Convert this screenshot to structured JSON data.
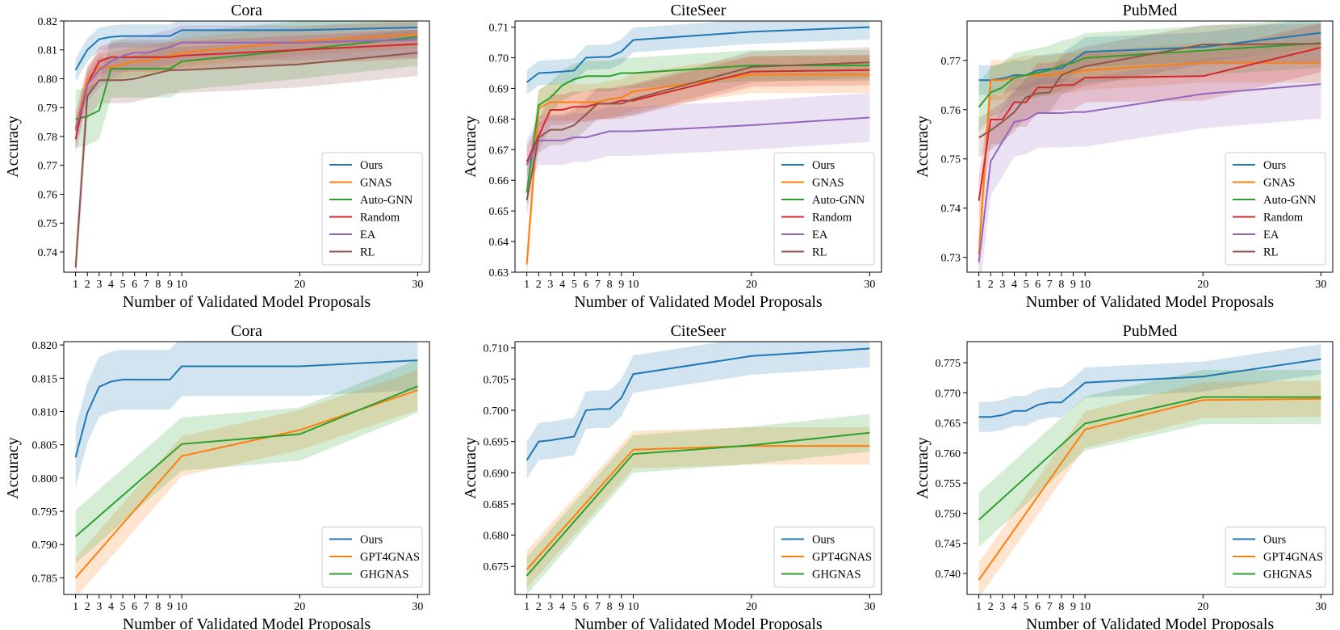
{
  "chart_data": [
    {
      "type": "line",
      "title": "Cora",
      "xlabel": "Number of Validated Model Proposals",
      "ylabel": "Accuracy",
      "xlim": [
        0,
        31
      ],
      "ylim": [
        0.733,
        0.82
      ],
      "xticks": [
        1,
        2,
        3,
        4,
        5,
        6,
        7,
        8,
        9,
        10,
        20,
        30
      ],
      "yticks": [
        0.74,
        0.75,
        0.76,
        0.77,
        0.78,
        0.79,
        0.8,
        0.81,
        0.82
      ],
      "ytick_decimals": 2,
      "legend_position": "lower right",
      "x": [
        1,
        2,
        3,
        4,
        5,
        6,
        7,
        8,
        9,
        10,
        20,
        30
      ],
      "series": [
        {
          "name": "Ours",
          "color": "#1f77b4",
          "values": [
            0.803,
            0.81,
            0.8137,
            0.8145,
            0.8148,
            0.8148,
            0.8148,
            0.8148,
            0.8148,
            0.8168,
            0.8168,
            0.8178
          ],
          "band": 0.004
        },
        {
          "name": "GNAS",
          "color": "#ff7f0e",
          "values": [
            0.783,
            0.8,
            0.804,
            0.804,
            0.805,
            0.806,
            0.806,
            0.807,
            0.808,
            0.809,
            0.813,
            0.8155
          ],
          "band": 0.005
        },
        {
          "name": "Auto-GNN",
          "color": "#2ca02c",
          "values": [
            0.786,
            0.787,
            0.789,
            0.8035,
            0.8035,
            0.8035,
            0.8035,
            0.8035,
            0.8035,
            0.806,
            0.81,
            0.8145
          ],
          "band": 0.01
        },
        {
          "name": "Random",
          "color": "#d62728",
          "values": [
            0.779,
            0.798,
            0.806,
            0.8075,
            0.8075,
            0.8075,
            0.8075,
            0.8075,
            0.8075,
            0.808,
            0.81,
            0.812
          ],
          "band": 0.005
        },
        {
          "name": "EA",
          "color": "#9467bd",
          "values": [
            0.782,
            0.798,
            0.803,
            0.806,
            0.808,
            0.809,
            0.809,
            0.81,
            0.811,
            0.8125,
            0.8125,
            0.8135
          ],
          "band": 0.006
        },
        {
          "name": "RL",
          "color": "#8c564b",
          "values": [
            0.7345,
            0.794,
            0.7995,
            0.7995,
            0.7995,
            0.8,
            0.801,
            0.802,
            0.803,
            0.803,
            0.805,
            0.809
          ],
          "band": 0.008
        }
      ]
    },
    {
      "type": "line",
      "title": "CiteSeer",
      "xlabel": "Number of Validated Model Proposals",
      "ylabel": "Accuracy",
      "xlim": [
        0,
        31
      ],
      "ylim": [
        0.63,
        0.712
      ],
      "xticks": [
        1,
        2,
        3,
        4,
        5,
        6,
        7,
        8,
        9,
        10,
        20,
        30
      ],
      "yticks": [
        0.63,
        0.64,
        0.65,
        0.66,
        0.67,
        0.68,
        0.69,
        0.7,
        0.71
      ],
      "ytick_decimals": 2,
      "legend_position": "lower right",
      "x": [
        1,
        2,
        3,
        4,
        5,
        6,
        7,
        8,
        9,
        10,
        20,
        30
      ],
      "series": [
        {
          "name": "Ours",
          "color": "#1f77b4",
          "values": [
            0.692,
            0.695,
            0.6952,
            0.6955,
            0.6958,
            0.7,
            0.7002,
            0.7003,
            0.702,
            0.7058,
            0.7085,
            0.71
          ],
          "band": 0.004
        },
        {
          "name": "GNAS",
          "color": "#ff7f0e",
          "values": [
            0.6325,
            0.6835,
            0.6855,
            0.6855,
            0.6855,
            0.6855,
            0.6855,
            0.6865,
            0.687,
            0.689,
            0.6945,
            0.6945
          ],
          "band": 0.006
        },
        {
          "name": "Auto-GNN",
          "color": "#2ca02c",
          "values": [
            0.656,
            0.6845,
            0.687,
            0.691,
            0.693,
            0.694,
            0.694,
            0.694,
            0.695,
            0.695,
            0.6975,
            0.6975
          ],
          "band": 0.005
        },
        {
          "name": "Random",
          "color": "#d62728",
          "values": [
            0.666,
            0.6745,
            0.683,
            0.683,
            0.684,
            0.684,
            0.685,
            0.685,
            0.686,
            0.686,
            0.6955,
            0.696
          ],
          "band": 0.005
        },
        {
          "name": "EA",
          "color": "#9467bd",
          "values": [
            0.665,
            0.673,
            0.673,
            0.673,
            0.674,
            0.674,
            0.675,
            0.676,
            0.676,
            0.676,
            0.678,
            0.6805
          ],
          "band": 0.008
        },
        {
          "name": "RL",
          "color": "#8c564b",
          "values": [
            0.6535,
            0.674,
            0.6765,
            0.6765,
            0.678,
            0.6815,
            0.685,
            0.685,
            0.685,
            0.6865,
            0.697,
            0.6985
          ],
          "band": 0.005
        }
      ]
    },
    {
      "type": "line",
      "title": "PubMed",
      "xlabel": "Number of Validated Model Proposals",
      "ylabel": "Accuracy",
      "xlim": [
        0,
        31
      ],
      "ylim": [
        0.727,
        0.778
      ],
      "xticks": [
        1,
        2,
        3,
        4,
        5,
        6,
        7,
        8,
        9,
        10,
        20,
        30
      ],
      "yticks": [
        0.73,
        0.74,
        0.75,
        0.76,
        0.77
      ],
      "ytick_decimals": 2,
      "legend_position": "lower right",
      "x": [
        1,
        2,
        3,
        4,
        5,
        6,
        7,
        8,
        9,
        10,
        20,
        30
      ],
      "series": [
        {
          "name": "Ours",
          "color": "#1f77b4",
          "values": [
            0.766,
            0.766,
            0.7663,
            0.767,
            0.767,
            0.768,
            0.7683,
            0.7684,
            0.77,
            0.7717,
            0.7727,
            0.7756
          ],
          "band": 0.003
        },
        {
          "name": "GNAS",
          "color": "#ff7f0e",
          "values": [
            0.7305,
            0.766,
            0.766,
            0.7665,
            0.767,
            0.767,
            0.767,
            0.7675,
            0.7675,
            0.768,
            0.7695,
            0.7695
          ],
          "band": 0.004
        },
        {
          "name": "Auto-GNN",
          "color": "#2ca02c",
          "values": [
            0.7605,
            0.7635,
            0.7645,
            0.7665,
            0.767,
            0.7675,
            0.768,
            0.769,
            0.7695,
            0.7705,
            0.772,
            0.7735
          ],
          "band": 0.005
        },
        {
          "name": "Random",
          "color": "#d62728",
          "values": [
            0.7415,
            0.758,
            0.758,
            0.7615,
            0.7615,
            0.7645,
            0.7645,
            0.765,
            0.765,
            0.7665,
            0.7668,
            0.7726
          ],
          "band": 0.005
        },
        {
          "name": "EA",
          "color": "#9467bd",
          "values": [
            0.729,
            0.7495,
            0.7535,
            0.7575,
            0.758,
            0.7593,
            0.7593,
            0.7593,
            0.7595,
            0.7595,
            0.7632,
            0.7652
          ],
          "band": 0.007
        },
        {
          "name": "RL",
          "color": "#8c564b",
          "values": [
            0.7543,
            0.7558,
            0.7575,
            0.7595,
            0.7625,
            0.7633,
            0.7635,
            0.767,
            0.768,
            0.7688,
            0.7732,
            0.7734
          ],
          "band": 0.004
        }
      ]
    },
    {
      "type": "line",
      "title": "Cora",
      "xlabel": "Number of Validated Model Proposals",
      "ylabel": "Accuracy",
      "xlim": [
        0,
        31
      ],
      "ylim": [
        0.7825,
        0.8205
      ],
      "xticks": [
        1,
        2,
        3,
        4,
        5,
        6,
        7,
        8,
        9,
        10,
        20,
        30
      ],
      "yticks": [
        0.785,
        0.79,
        0.795,
        0.8,
        0.805,
        0.81,
        0.815,
        0.82
      ],
      "ytick_decimals": 3,
      "legend_position": "lower right",
      "x": [
        1,
        2,
        3,
        4,
        5,
        6,
        7,
        8,
        9,
        10,
        20,
        30
      ],
      "series": [
        {
          "name": "Ours",
          "color": "#1f77b4",
          "values": [
            0.8031,
            0.8098,
            0.8137,
            0.8145,
            0.8148,
            0.8148,
            0.8148,
            0.8148,
            0.8148,
            0.8168,
            0.8168,
            0.8177
          ],
          "band": 0.0045
        },
        {
          "name": "GPT4GNAS",
          "color": "#ff7f0e",
          "x": [
            1,
            10,
            20,
            30
          ],
          "values": [
            0.785,
            0.8033,
            0.8072,
            0.8132
          ],
          "band": 0.003
        },
        {
          "name": "GHGNAS",
          "color": "#2ca02c",
          "x": [
            1,
            10,
            20,
            30
          ],
          "values": [
            0.7912,
            0.8051,
            0.8066,
            0.8138
          ],
          "band": 0.004
        }
      ]
    },
    {
      "type": "line",
      "title": "CiteSeer",
      "xlabel": "Number of Validated Model Proposals",
      "ylabel": "Accuracy",
      "xlim": [
        0,
        31
      ],
      "ylim": [
        0.6705,
        0.711
      ],
      "xticks": [
        1,
        2,
        3,
        4,
        5,
        6,
        7,
        8,
        9,
        10,
        20,
        30
      ],
      "yticks": [
        0.675,
        0.68,
        0.685,
        0.69,
        0.695,
        0.7,
        0.705,
        0.71
      ],
      "ytick_decimals": 3,
      "legend_position": "lower right",
      "x": [
        1,
        2,
        3,
        4,
        5,
        6,
        7,
        8,
        9,
        10,
        20,
        30
      ],
      "series": [
        {
          "name": "Ours",
          "color": "#1f77b4",
          "values": [
            0.692,
            0.695,
            0.6952,
            0.6955,
            0.6958,
            0.7,
            0.7002,
            0.7002,
            0.702,
            0.7058,
            0.7087,
            0.7099
          ],
          "band": 0.003
        },
        {
          "name": "GPT4GNAS",
          "color": "#ff7f0e",
          "x": [
            1,
            10,
            20,
            30
          ],
          "values": [
            0.6745,
            0.6937,
            0.6943,
            0.6943
          ],
          "band": 0.003
        },
        {
          "name": "GHGNAS",
          "color": "#2ca02c",
          "x": [
            1,
            10,
            20,
            30
          ],
          "values": [
            0.6735,
            0.693,
            0.6944,
            0.6964
          ],
          "band": 0.003
        }
      ]
    },
    {
      "type": "line",
      "title": "PubMed",
      "xlabel": "Number of Validated Model Proposals",
      "ylabel": "Accuracy",
      "xlim": [
        0,
        31
      ],
      "ylim": [
        0.7365,
        0.7785
      ],
      "xticks": [
        1,
        2,
        3,
        4,
        5,
        6,
        7,
        8,
        9,
        10,
        20,
        30
      ],
      "yticks": [
        0.74,
        0.745,
        0.75,
        0.755,
        0.76,
        0.765,
        0.77,
        0.775
      ],
      "ytick_decimals": 3,
      "legend_position": "lower right",
      "x": [
        1,
        2,
        3,
        4,
        5,
        6,
        7,
        8,
        9,
        10,
        20,
        30
      ],
      "series": [
        {
          "name": "Ours",
          "color": "#1f77b4",
          "values": [
            0.766,
            0.766,
            0.7663,
            0.767,
            0.767,
            0.768,
            0.7684,
            0.7684,
            0.77,
            0.7717,
            0.7727,
            0.7756
          ],
          "band": 0.0025
        },
        {
          "name": "GPT4GNAS",
          "color": "#ff7f0e",
          "x": [
            1,
            10,
            20,
            30
          ],
          "values": [
            0.7389,
            0.7639,
            0.7688,
            0.769
          ],
          "band": 0.003
        },
        {
          "name": "GHGNAS",
          "color": "#2ca02c",
          "x": [
            1,
            10,
            20,
            30
          ],
          "values": [
            0.7489,
            0.7649,
            0.7693,
            0.7693
          ],
          "band": 0.0045
        }
      ]
    }
  ]
}
